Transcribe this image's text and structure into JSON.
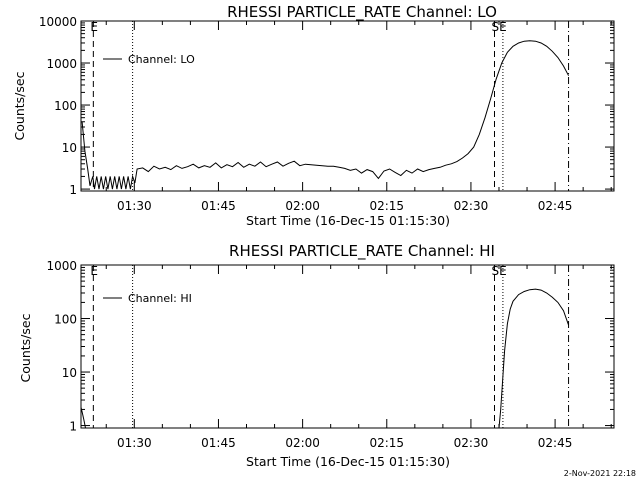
{
  "chart_data": [
    {
      "type": "line",
      "title": "RHESSI PARTICLE_RATE Channel: LO",
      "xlabel": "Start Time (16-Dec-15 01:15:30)",
      "ylabel": "Counts/sec",
      "yscale": "log",
      "ylim": [
        0.9,
        10000
      ],
      "xlim_minutes": [
        5,
        100
      ],
      "x_unit": "minutes after 01:15:30 (approx)",
      "xtick_labels": [
        "01:30",
        "01:45",
        "02:00",
        "02:15",
        "02:30",
        "02:45"
      ],
      "xtick_minutes": [
        14.5,
        29.5,
        44.5,
        59.5,
        74.5,
        89.5
      ],
      "ytick_labels": [
        "1",
        "10",
        "100",
        "1000",
        "10000"
      ],
      "ytick_values": [
        1,
        10,
        100,
        1000,
        10000
      ],
      "legend": "Channel: LO",
      "legend_position": "top-left",
      "markers": [
        {
          "minute": 7.2,
          "style": "dashed",
          "label": "E"
        },
        {
          "minute": 14.2,
          "style": "dotted",
          "label": ""
        },
        {
          "minute": 78.7,
          "style": "dashed",
          "label": "SE"
        },
        {
          "minute": 80.2,
          "style": "dotted",
          "label": ""
        },
        {
          "minute": 91.9,
          "style": "dashdot",
          "label": ""
        }
      ],
      "series": [
        {
          "name": "Channel: LO",
          "x": [
            5.2,
            5.7,
            6.2,
            6.6,
            7.1,
            7.4,
            7.8,
            8.2,
            8.6,
            9.0,
            9.4,
            9.8,
            10.2,
            10.6,
            11.0,
            11.4,
            11.8,
            12.2,
            12.6,
            13.0,
            13.4,
            13.8,
            14.2,
            14.6,
            15.0,
            16,
            17,
            18,
            19,
            20,
            21,
            22,
            23,
            24,
            25,
            26,
            27,
            28,
            29,
            30,
            31,
            32,
            33,
            34,
            35,
            36,
            37,
            38,
            39,
            40,
            41,
            42,
            43,
            44,
            45,
            46,
            47,
            48,
            49,
            50,
            51,
            52,
            53,
            54,
            55,
            56,
            57,
            58,
            59,
            60,
            61,
            62,
            63,
            64,
            65,
            66,
            67,
            68,
            69,
            70,
            71,
            72,
            73,
            74,
            75,
            76,
            77,
            78,
            79,
            80,
            81,
            82,
            83,
            84,
            85,
            86,
            87,
            88,
            89,
            90,
            91,
            91.9
          ],
          "values": [
            40,
            8,
            3,
            1.2,
            2,
            1,
            2,
            1,
            2,
            1,
            2,
            1,
            2,
            1,
            2,
            1,
            2,
            1,
            2,
            1,
            2,
            1,
            2,
            1.4,
            3,
            3.2,
            2.6,
            3.5,
            3.0,
            3.3,
            2.9,
            3.6,
            3.1,
            3.4,
            3.9,
            3.2,
            3.6,
            3.3,
            4.2,
            3.2,
            3.8,
            3.4,
            4.3,
            3.3,
            3.9,
            3.5,
            4.4,
            3.4,
            3.9,
            4.4,
            3.5,
            4.1,
            4.6,
            3.6,
            3.9,
            3.8,
            3.7,
            3.6,
            3.5,
            3.5,
            3.3,
            3.1,
            2.8,
            3.0,
            2.4,
            2.9,
            2.6,
            1.8,
            2.7,
            3.0,
            2.5,
            2.1,
            2.8,
            2.4,
            3.0,
            2.6,
            2.9,
            3.1,
            3.3,
            3.7,
            4.0,
            4.5,
            5.5,
            7.0,
            10,
            20,
            50,
            140,
            420,
            1000,
            1800,
            2500,
            3000,
            3300,
            3400,
            3300,
            3000,
            2500,
            1900,
            1350,
            850,
            500
          ]
        }
      ]
    },
    {
      "type": "line",
      "title": "RHESSI PARTICLE_RATE Channel: HI",
      "xlabel": "Start Time (16-Dec-15 01:15:30)",
      "ylabel": "Counts/sec",
      "yscale": "log",
      "ylim": [
        0.9,
        1000
      ],
      "xlim_minutes": [
        5,
        100
      ],
      "x_unit": "minutes after 01:15:30 (approx)",
      "xtick_labels": [
        "01:30",
        "01:45",
        "02:00",
        "02:15",
        "02:30",
        "02:45"
      ],
      "xtick_minutes": [
        14.5,
        29.5,
        44.5,
        59.5,
        74.5,
        89.5
      ],
      "ytick_labels": [
        "1",
        "10",
        "100",
        "1000"
      ],
      "ytick_values": [
        1,
        10,
        100,
        1000
      ],
      "legend": "Channel: HI",
      "legend_position": "top-left",
      "markers": [
        {
          "minute": 7.2,
          "style": "dashed",
          "label": "E"
        },
        {
          "minute": 14.2,
          "style": "dotted",
          "label": ""
        },
        {
          "minute": 78.7,
          "style": "dashed",
          "label": "SE"
        },
        {
          "minute": 80.2,
          "style": "dotted",
          "label": ""
        },
        {
          "minute": 91.9,
          "style": "dashdot",
          "label": ""
        }
      ],
      "series": [
        {
          "name": "Channel: HI",
          "x": [
            5.0,
            5.2,
            5.5,
            5.8
          ],
          "values": [
            2.2,
            1.8,
            1.3,
            0.9
          ]
        },
        {
          "name": "Channel: HI",
          "x": [
            79.5,
            79.8,
            80.1,
            80.5,
            81,
            81.5,
            82,
            83,
            84,
            85,
            86,
            87,
            88,
            89,
            90,
            91,
            91.9
          ],
          "values": [
            0.9,
            2,
            6,
            25,
            80,
            150,
            210,
            280,
            320,
            345,
            355,
            340,
            300,
            250,
            200,
            140,
            75
          ]
        }
      ]
    }
  ],
  "footer": {
    "timestamp": "2-Nov-2021 22:18"
  }
}
